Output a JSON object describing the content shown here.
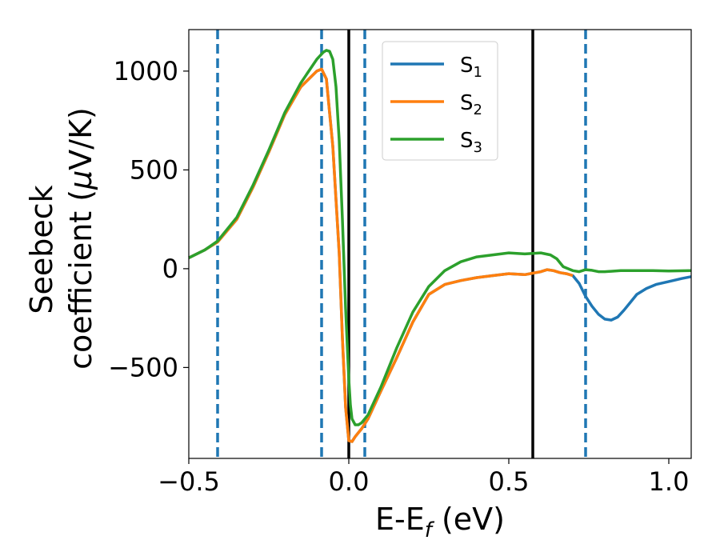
{
  "chart_data": {
    "type": "line",
    "title": "",
    "xlabel": {
      "main": "E-E",
      "sub": "f",
      "unit": " (eV)"
    },
    "ylabel": {
      "line1": "Seebeck",
      "line2_pre": "coefficient  (",
      "mu": "μ",
      "line2_post": "V/K)"
    },
    "xlim": [
      -0.5,
      1.07
    ],
    "ylim": [
      -960,
      1210
    ],
    "xticks": [
      -0.5,
      0.0,
      0.5,
      1.0
    ],
    "xtick_labels": [
      "−0.5",
      "0.0",
      "0.5",
      "1.0"
    ],
    "yticks": [
      -500,
      0,
      500,
      1000
    ],
    "ytick_labels": [
      "−500",
      "0",
      "500",
      "1000"
    ],
    "legend_position": "upper-center",
    "dashed_vlines": [
      -0.41,
      -0.085,
      0.05,
      0.74
    ],
    "solid_vlines": [
      0.0,
      0.575
    ],
    "series": [
      {
        "name": "S",
        "sub": "1",
        "color": "#1f77b4",
        "x": [
          -0.5,
          -0.45,
          -0.41,
          -0.35,
          -0.3,
          -0.25,
          -0.2,
          -0.15,
          -0.1,
          -0.085,
          -0.07,
          -0.05,
          -0.03,
          -0.02,
          -0.01,
          0.0,
          0.01,
          0.02,
          0.04,
          0.06,
          0.1,
          0.15,
          0.2,
          0.25,
          0.3,
          0.35,
          0.4,
          0.45,
          0.5,
          0.55,
          0.6,
          0.62,
          0.64,
          0.66,
          0.68,
          0.7,
          0.72,
          0.74,
          0.76,
          0.78,
          0.8,
          0.82,
          0.84,
          0.86,
          0.88,
          0.9,
          0.93,
          0.96,
          1.0,
          1.04,
          1.07
        ],
        "values": [
          55,
          95,
          135,
          250,
          410,
          590,
          780,
          920,
          1000,
          1010,
          960,
          620,
          80,
          -350,
          -700,
          -870,
          -875,
          -850,
          -810,
          -760,
          -620,
          -450,
          -270,
          -130,
          -80,
          -60,
          -45,
          -35,
          -25,
          -30,
          -15,
          -5,
          -10,
          -20,
          -25,
          -35,
          -75,
          -140,
          -190,
          -230,
          -255,
          -260,
          -245,
          -210,
          -170,
          -130,
          -100,
          -80,
          -65,
          -50,
          -40
        ]
      },
      {
        "name": "S",
        "sub": "2",
        "color": "#ff7f0e",
        "x": [
          -0.5,
          -0.45,
          -0.41,
          -0.35,
          -0.3,
          -0.25,
          -0.2,
          -0.15,
          -0.1,
          -0.085,
          -0.07,
          -0.05,
          -0.03,
          -0.02,
          -0.01,
          0.0,
          0.01,
          0.02,
          0.04,
          0.06,
          0.1,
          0.15,
          0.2,
          0.25,
          0.3,
          0.35,
          0.4,
          0.45,
          0.5,
          0.55,
          0.6,
          0.62,
          0.64,
          0.66,
          0.68,
          0.7
        ],
        "values": [
          55,
          95,
          135,
          250,
          410,
          590,
          780,
          920,
          1000,
          1010,
          960,
          620,
          80,
          -350,
          -700,
          -870,
          -875,
          -850,
          -810,
          -760,
          -620,
          -450,
          -270,
          -130,
          -80,
          -60,
          -45,
          -35,
          -25,
          -30,
          -15,
          -5,
          -10,
          -20,
          -25,
          -35
        ]
      },
      {
        "name": "S",
        "sub": "3",
        "color": "#2ca02c",
        "x": [
          -0.5,
          -0.45,
          -0.41,
          -0.35,
          -0.3,
          -0.25,
          -0.2,
          -0.15,
          -0.1,
          -0.08,
          -0.07,
          -0.06,
          -0.05,
          -0.04,
          -0.03,
          -0.02,
          -0.01,
          0.0,
          0.005,
          0.01,
          0.02,
          0.03,
          0.04,
          0.06,
          0.1,
          0.15,
          0.2,
          0.25,
          0.3,
          0.35,
          0.4,
          0.45,
          0.5,
          0.55,
          0.6,
          0.63,
          0.65,
          0.67,
          0.7,
          0.72,
          0.74,
          0.76,
          0.78,
          0.8,
          0.85,
          0.9,
          0.95,
          1.0,
          1.07
        ],
        "values": [
          55,
          95,
          140,
          260,
          420,
          600,
          790,
          940,
          1060,
          1095,
          1105,
          1100,
          1060,
          920,
          650,
          250,
          -200,
          -560,
          -690,
          -760,
          -790,
          -790,
          -780,
          -740,
          -600,
          -400,
          -220,
          -90,
          -10,
          35,
          60,
          70,
          80,
          75,
          80,
          70,
          50,
          10,
          -10,
          -15,
          -5,
          -8,
          -15,
          -15,
          -10,
          -10,
          -10,
          -12,
          -10
        ]
      }
    ]
  }
}
